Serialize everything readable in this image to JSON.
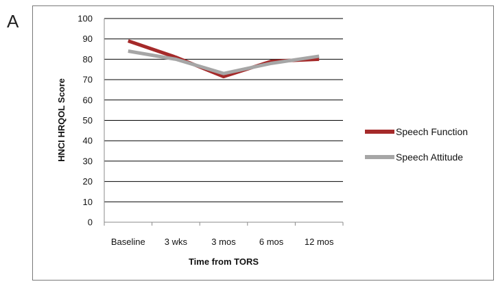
{
  "panel_label": "A",
  "colors": {
    "speech_function": "#a52a2a",
    "speech_attitude": "#a6a6a6",
    "grid": "#000000"
  },
  "chart_data": {
    "type": "line",
    "title": "",
    "xlabel": "Time from TORS",
    "ylabel": "HNCI HRQOL Score",
    "categories": [
      "Baseline",
      "3 wks",
      "3 mos",
      "6 mos",
      "12 mos"
    ],
    "ylim": [
      0,
      100
    ],
    "yticks": [
      0,
      10,
      20,
      30,
      40,
      50,
      60,
      70,
      80,
      90,
      100
    ],
    "grid": true,
    "legend_position": "right",
    "series": [
      {
        "name": "Speech Function",
        "values": [
          89,
          81,
          71.5,
          79,
          80
        ],
        "color": "#a52a2a"
      },
      {
        "name": "Speech Attitude",
        "values": [
          84,
          80,
          73,
          78,
          81.5
        ],
        "color": "#a6a6a6"
      }
    ]
  }
}
